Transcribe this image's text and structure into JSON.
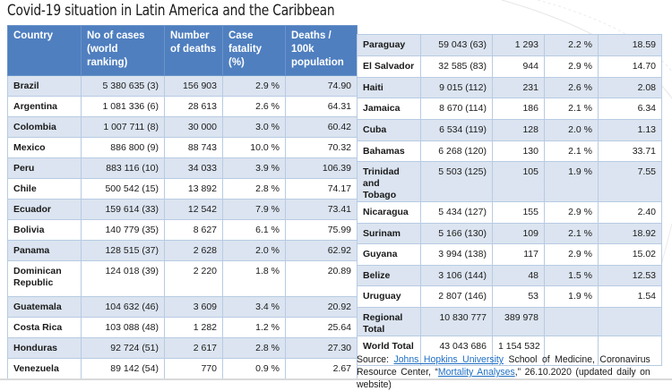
{
  "title": "Covid-19 situation in Latin America and the Caribbean",
  "columns": [
    "Country",
    "No of cases (world ranking)",
    "Number of deaths",
    "Case fatality (%)",
    "Deaths / 100k population"
  ],
  "left_rows": [
    {
      "country": "Brazil",
      "cases": "5 380 635 (3)",
      "deaths": "156 903",
      "fatality": "2.9 %",
      "per100k": "74.90"
    },
    {
      "country": "Argentina",
      "cases": "1 081 336 (6)",
      "deaths": "28 613",
      "fatality": "2.6 %",
      "per100k": "64.31"
    },
    {
      "country": "Colombia",
      "cases": "1 007 711 (8)",
      "deaths": "30 000",
      "fatality": "3.0 %",
      "per100k": "60.42"
    },
    {
      "country": "Mexico",
      "cases": "886 800 (9)",
      "deaths": "88 743",
      "fatality": "10.0 %",
      "per100k": "70.32"
    },
    {
      "country": "Peru",
      "cases": "883 116 (10)",
      "deaths": "34 033",
      "fatality": "3.9 %",
      "per100k": "106.39"
    },
    {
      "country": "Chile",
      "cases": "500 542 (15)",
      "deaths": "13 892",
      "fatality": "2.8 %",
      "per100k": "74.17"
    },
    {
      "country": "Ecuador",
      "cases": "159 614 (33)",
      "deaths": "12 542",
      "fatality": "7.9 %",
      "per100k": "73.41"
    },
    {
      "country": "Bolivia",
      "cases": "140 779 (35)",
      "deaths": "8 627",
      "fatality": "6.1 %",
      "per100k": "75.99"
    },
    {
      "country": "Panama",
      "cases": "128 515 (37)",
      "deaths": "2 628",
      "fatality": "2.0 %",
      "per100k": "62.92"
    },
    {
      "country": "Dominican Republic",
      "cases": "124 018 (39)",
      "deaths": "2 220",
      "fatality": "1.8 %",
      "per100k": "20.89"
    },
    {
      "country": "Guatemala",
      "cases": "104 632 (46)",
      "deaths": "3 609",
      "fatality": "3.4 %",
      "per100k": "20.92"
    },
    {
      "country": "Costa Rica",
      "cases": "103 088 (48)",
      "deaths": "1 282",
      "fatality": "1.2 %",
      "per100k": "25.64"
    },
    {
      "country": "Honduras",
      "cases": "92 724 (51)",
      "deaths": "2 617",
      "fatality": "2.8 %",
      "per100k": "27.30"
    },
    {
      "country": "Venezuela",
      "cases": "89 142 (54)",
      "deaths": "770",
      "fatality": "0.9 %",
      "per100k": "2.67"
    }
  ],
  "right_rows": [
    {
      "country": "Paraguay",
      "cases": "59 043 (63)",
      "deaths": "1 293",
      "fatality": "2.2 %",
      "per100k": "18.59"
    },
    {
      "country": "El Salvador",
      "cases": "32 585 (83)",
      "deaths": "944",
      "fatality": "2.9 %",
      "per100k": "14.70"
    },
    {
      "country": "Haiti",
      "cases": "9 015 (112)",
      "deaths": "231",
      "fatality": "2.6 %",
      "per100k": "2.08"
    },
    {
      "country": "Jamaica",
      "cases": "8 670 (114)",
      "deaths": "186",
      "fatality": "2.1 %",
      "per100k": "6.34"
    },
    {
      "country": "Cuba",
      "cases": "6 534 (119)",
      "deaths": "128",
      "fatality": "2.0 %",
      "per100k": "1.13"
    },
    {
      "country": "Bahamas",
      "cases": "6 268 (120)",
      "deaths": "130",
      "fatality": "2.1 %",
      "per100k": "33.71"
    },
    {
      "country": "Trinidad and Tobago",
      "cases": "5 503 (125)",
      "deaths": "105",
      "fatality": "1.9 %",
      "per100k": "7.55"
    },
    {
      "country": "Nicaragua",
      "cases": "5 434 (127)",
      "deaths": "155",
      "fatality": "2.9 %",
      "per100k": "2.40"
    },
    {
      "country": "Surinam",
      "cases": "5 166 (130)",
      "deaths": "109",
      "fatality": "2.1 %",
      "per100k": "18.92"
    },
    {
      "country": "Guyana",
      "cases": "3 994 (138)",
      "deaths": "117",
      "fatality": "2.9 %",
      "per100k": "15.02"
    },
    {
      "country": "Belize",
      "cases": "3 106 (144)",
      "deaths": "48",
      "fatality": "1.5 %",
      "per100k": "12.53"
    },
    {
      "country": "Uruguay",
      "cases": "2 807 (146)",
      "deaths": "53",
      "fatality": "1.9 %",
      "per100k": "1.54"
    },
    {
      "country": "Regional Total",
      "cases": "10 830 777",
      "deaths": "389 978",
      "fatality": "",
      "per100k": ""
    },
    {
      "country": "World Total",
      "cases": "43 043 686",
      "deaths": "1 154 532",
      "fatality": "",
      "per100k": ""
    }
  ],
  "source": {
    "prefix": "Source: ",
    "link1": "Johns Hopkins University",
    "middle": " School of Medicine, Coronavirus Resource Center, “",
    "link2": "Mortality Analyses",
    "suffix": ",” 26.10.2020 (updated daily on website)"
  },
  "colors": {
    "header_bg": "#4f7fbf",
    "stripe_bg": "#dbe4f0",
    "link": "#1f6fc5"
  }
}
